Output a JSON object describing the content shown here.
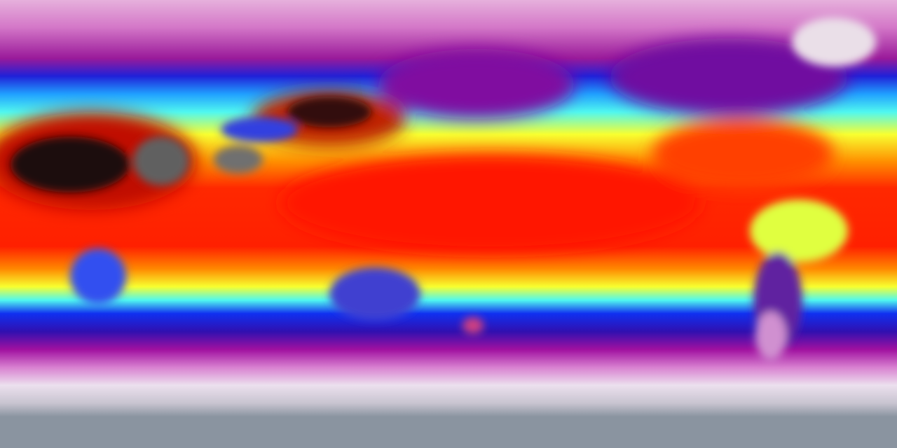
{
  "map": {
    "projection": "equirectangular",
    "field": "temperature",
    "colormap": [
      "#8a94a0",
      "#e8e0ea",
      "#d070c8",
      "#900090",
      "#1010e0",
      "#40f0ff",
      "#ffff20",
      "#ff8000",
      "#ff1000",
      "#300808",
      "#808080"
    ],
    "polar_color": "#8a94a0",
    "desert_color": "#1a1010"
  }
}
